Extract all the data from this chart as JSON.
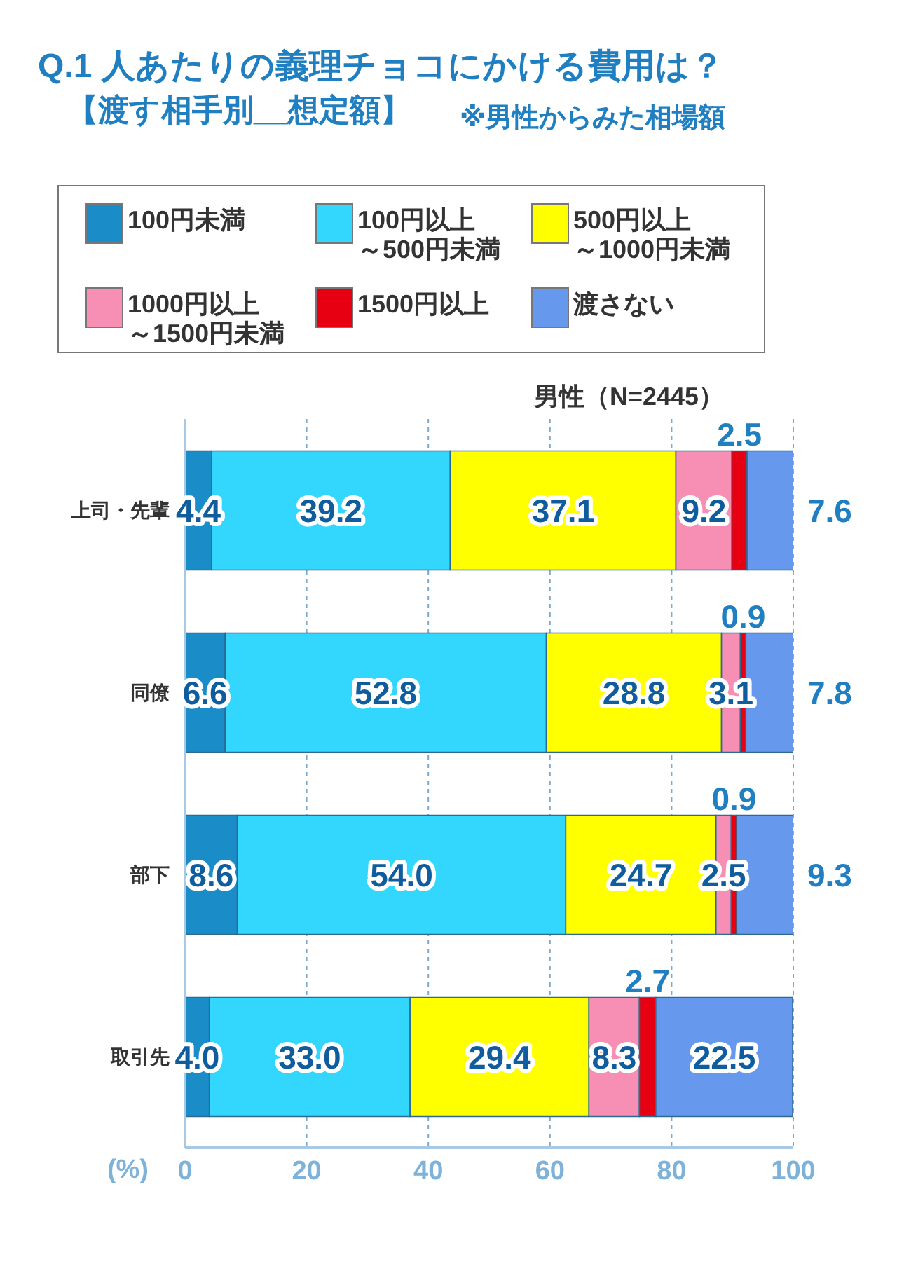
{
  "chart_data": {
    "type": "bar",
    "orientation": "horizontal",
    "stacked": true,
    "title": "Q.1 人あたりの義理チョコにかける費用は？",
    "subtitle": "【渡す相手別__想定額】",
    "annotations": [
      "※男性からみた相場額",
      "男性（N=2445）"
    ],
    "xlabel": "(%)",
    "categories": [
      "上司・先輩",
      "同僚",
      "部下",
      "取引先"
    ],
    "series": [
      {
        "name": "100円未満",
        "color": "#1a8cc8",
        "values": [
          4.4,
          6.6,
          8.6,
          4.0
        ],
        "value_labels": [
          "4.4",
          "6.6",
          "8.6",
          "4.0"
        ]
      },
      {
        "name": "100円以上～500円未満",
        "color": "#33d6fc",
        "values": [
          39.2,
          52.8,
          54.0,
          33.0
        ],
        "value_labels": [
          "39.2",
          "52.8",
          "54.0",
          "33.0"
        ]
      },
      {
        "name": "500円以上～1000円未満",
        "color": "#ffff00",
        "values": [
          37.1,
          28.8,
          24.7,
          29.4
        ],
        "value_labels": [
          "37.1",
          "28.8",
          "24.7",
          "29.4"
        ]
      },
      {
        "name": "1000円以上～1500円未満",
        "color": "#f78fb5",
        "values": [
          9.2,
          3.1,
          2.5,
          8.3
        ],
        "value_labels": [
          "9.2",
          "3.1",
          "2.5",
          "8.3"
        ]
      },
      {
        "name": "1500円以上",
        "color": "#e60012",
        "values": [
          2.5,
          0.9,
          0.9,
          2.7
        ],
        "value_labels": [
          "2.5",
          "0.9",
          "0.9",
          "2.7"
        ]
      },
      {
        "name": "渡さない",
        "color": "#6699ee",
        "values": [
          7.6,
          7.8,
          9.3,
          22.5
        ],
        "value_labels": [
          "7.6",
          "7.8",
          "9.3",
          "22.5"
        ]
      }
    ],
    "xlim": [
      0,
      100
    ],
    "xticks": [
      0,
      20,
      40,
      60,
      80,
      100
    ],
    "grid": "x",
    "legend": "top"
  }
}
